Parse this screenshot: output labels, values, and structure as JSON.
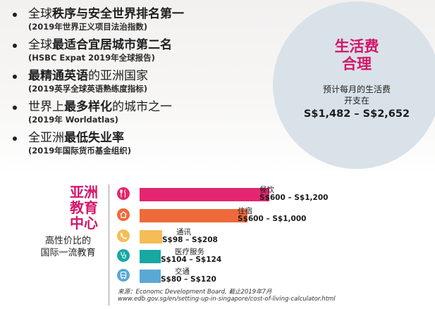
{
  "bullets": [
    {
      "pre": "全球",
      "bold": "秩序与安全世界排名第一",
      "post": "",
      "sub": "(2019年世界正义项目法治指数)"
    },
    {
      "pre": "全球",
      "bold": "最适合宜居城市第二名",
      "post": "",
      "sub": "(HSBC Expat 2019年全球报告)"
    },
    {
      "pre": "",
      "bold": "最精通英语",
      "post": "的亚洲国家",
      "sub": "(2019英孚全球英语熟练度指标)"
    },
    {
      "pre": "世界上",
      "bold": "最多样化",
      "post": "的城市之一",
      "sub": "(2019年 Worldatlas)"
    },
    {
      "pre": "全亚洲",
      "bold": "最低失业率",
      "post": "",
      "sub": "(2019年国际货币基金组织)"
    }
  ],
  "circle": {
    "title_line1": "生活费",
    "title_line2": "合理",
    "desc_line1": "预计每月的生活费",
    "desc_line2": "开支在",
    "range": "S$1,482 – S$2,652"
  },
  "education": {
    "title_line1": "亚洲",
    "title_line2": "教育",
    "title_line3": "中心",
    "sub_line1": "高性价比的",
    "sub_line2": "国际一流教育"
  },
  "costs": [
    {
      "label": "餐饮",
      "amount": "S$600 – S$1,200",
      "icon": "fork-knife-icon",
      "color": "#e4256f",
      "max": 1200
    },
    {
      "label": "住宿",
      "amount": "S$600 – S$1,000",
      "icon": "house-icon",
      "color": "#ee6a3b",
      "max": 1000
    },
    {
      "label": "通讯",
      "amount": "S$98 – S$208",
      "icon": "phone-icon",
      "color": "#f5bd56",
      "max": 208
    },
    {
      "label": "医疗服务",
      "amount": "S$104 – S$124",
      "icon": "stethoscope-icon",
      "color": "#16a8a3",
      "max": 124
    },
    {
      "label": "交通",
      "amount": "S$80 – S$120",
      "icon": "bus-icon",
      "color": "#5aa9d4",
      "max": 120
    }
  ],
  "source": {
    "line1": "来源：Economc Development Board, 截止2019年7月",
    "line2": "www.edb.gov.sg/en/setting-up-in-singapore/cost-of-living-calculator.html"
  }
}
